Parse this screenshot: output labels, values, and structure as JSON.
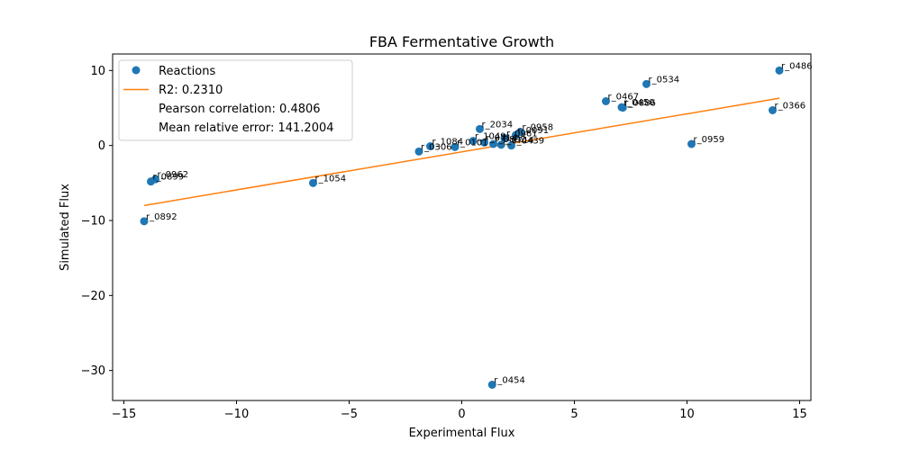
{
  "chart_data": {
    "type": "scatter",
    "title": "FBA Fermentative Growth",
    "xlabel": "Experimental Flux",
    "ylabel": "Simulated Flux",
    "xlim": [
      -15.5,
      15.5
    ],
    "ylim": [
      -34,
      12.2
    ],
    "xticks": [
      -15,
      -10,
      -5,
      0,
      5,
      10,
      15
    ],
    "yticks": [
      -30,
      -20,
      -10,
      0,
      10
    ],
    "colors": {
      "points": "#1f77b4",
      "fit": "#ff7f0e"
    },
    "legend": {
      "placement": "top-left",
      "entries": [
        "Reactions",
        "R2: 0.2310",
        "Pearson correlation: 0.4806",
        "Mean relative error: 141.2004"
      ]
    },
    "fit_line": {
      "x": [
        -14.1,
        14.1
      ],
      "y": [
        -8.0,
        6.3
      ]
    },
    "points": [
      {
        "label": "r_0486",
        "x": 14.1,
        "y": 10.0
      },
      {
        "label": "r_0534",
        "x": 8.2,
        "y": 8.2
      },
      {
        "label": "r_0467",
        "x": 6.4,
        "y": 5.9
      },
      {
        "label": "r_0450",
        "x": 7.1,
        "y": 5.1
      },
      {
        "label": "r_0886",
        "x": 7.15,
        "y": 5.05
      },
      {
        "label": "r_0366",
        "x": 13.8,
        "y": 4.7
      },
      {
        "label": "r_2034",
        "x": 0.8,
        "y": 2.2
      },
      {
        "label": "r_0958",
        "x": 2.6,
        "y": 1.8
      },
      {
        "label": "r_0091",
        "x": 2.4,
        "y": 1.4
      },
      {
        "label": "r_0961",
        "x": 1.9,
        "y": 1.0
      },
      {
        "label": "r_1049",
        "x": 0.5,
        "y": 0.6
      },
      {
        "label": "r_0714",
        "x": 1.0,
        "y": 0.4
      },
      {
        "label": "r_0892",
        "x": 1.4,
        "y": 0.2
      },
      {
        "label": "r_0714",
        "x": 1.75,
        "y": 0.1
      },
      {
        "label": "r_0439",
        "x": 2.2,
        "y": 0.0
      },
      {
        "label": "r_0959",
        "x": 10.2,
        "y": 0.2
      },
      {
        "label": "r_1084",
        "x": -1.4,
        "y": -0.1
      },
      {
        "label": "r_0101",
        "x": -0.3,
        "y": -0.2
      },
      {
        "label": "r_0306",
        "x": -1.9,
        "y": -0.8
      },
      {
        "label": "r_0962",
        "x": -13.6,
        "y": -4.5
      },
      {
        "label": "r_0899",
        "x": -13.8,
        "y": -4.8
      },
      {
        "label": "r_1054",
        "x": -6.6,
        "y": -5.0
      },
      {
        "label": "r_0892",
        "x": -14.1,
        "y": -10.1
      },
      {
        "label": "r_0454",
        "x": 1.35,
        "y": -31.9
      }
    ]
  }
}
